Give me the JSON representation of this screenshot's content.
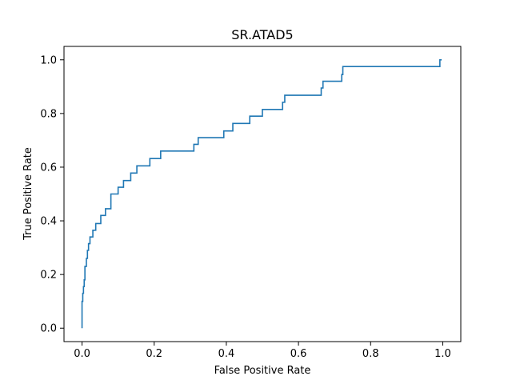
{
  "chart_data": {
    "type": "line",
    "title": "SR.ATAD5",
    "xlabel": "False Positive Rate",
    "ylabel": "True Positive Rate",
    "xlim": [
      -0.05,
      1.05
    ],
    "ylim": [
      -0.05,
      1.05
    ],
    "xticks": [
      "0.0",
      "0.2",
      "0.4",
      "0.6",
      "0.8",
      "1.0"
    ],
    "yticks": [
      "0.0",
      "0.2",
      "0.4",
      "0.6",
      "0.8",
      "1.0"
    ],
    "grid": false,
    "line_color": "#1f77b4",
    "series": [
      {
        "x": [
          0.0,
          0.0,
          0.002,
          0.002,
          0.004,
          0.004,
          0.006,
          0.006,
          0.008,
          0.008,
          0.012,
          0.012,
          0.015,
          0.015,
          0.018,
          0.018,
          0.022,
          0.022,
          0.03,
          0.03,
          0.038,
          0.038,
          0.052,
          0.052,
          0.065,
          0.065,
          0.08,
          0.08,
          0.1,
          0.1,
          0.115,
          0.115,
          0.135,
          0.135,
          0.152,
          0.152,
          0.188,
          0.188,
          0.218,
          0.218,
          0.31,
          0.31,
          0.322,
          0.322,
          0.393,
          0.393,
          0.418,
          0.418,
          0.465,
          0.465,
          0.5,
          0.5,
          0.556,
          0.556,
          0.558,
          0.558,
          0.562,
          0.562,
          0.572,
          0.572,
          0.663,
          0.663,
          0.668,
          0.668,
          0.72,
          0.72,
          0.723,
          0.723,
          0.992,
          0.992,
          0.997
        ],
        "y": [
          0.0,
          0.1,
          0.1,
          0.13,
          0.13,
          0.155,
          0.155,
          0.18,
          0.18,
          0.23,
          0.23,
          0.26,
          0.26,
          0.29,
          0.29,
          0.315,
          0.315,
          0.34,
          0.34,
          0.365,
          0.365,
          0.39,
          0.39,
          0.42,
          0.42,
          0.445,
          0.445,
          0.5,
          0.5,
          0.525,
          0.525,
          0.55,
          0.55,
          0.578,
          0.578,
          0.605,
          0.605,
          0.632,
          0.632,
          0.66,
          0.66,
          0.685,
          0.685,
          0.71,
          0.71,
          0.735,
          0.735,
          0.763,
          0.763,
          0.79,
          0.79,
          0.815,
          0.815,
          0.842,
          0.842,
          0.842,
          0.842,
          0.868,
          0.868,
          0.868,
          0.868,
          0.895,
          0.895,
          0.92,
          0.92,
          0.945,
          0.945,
          0.975,
          0.975,
          1.0,
          1.0
        ]
      }
    ]
  }
}
